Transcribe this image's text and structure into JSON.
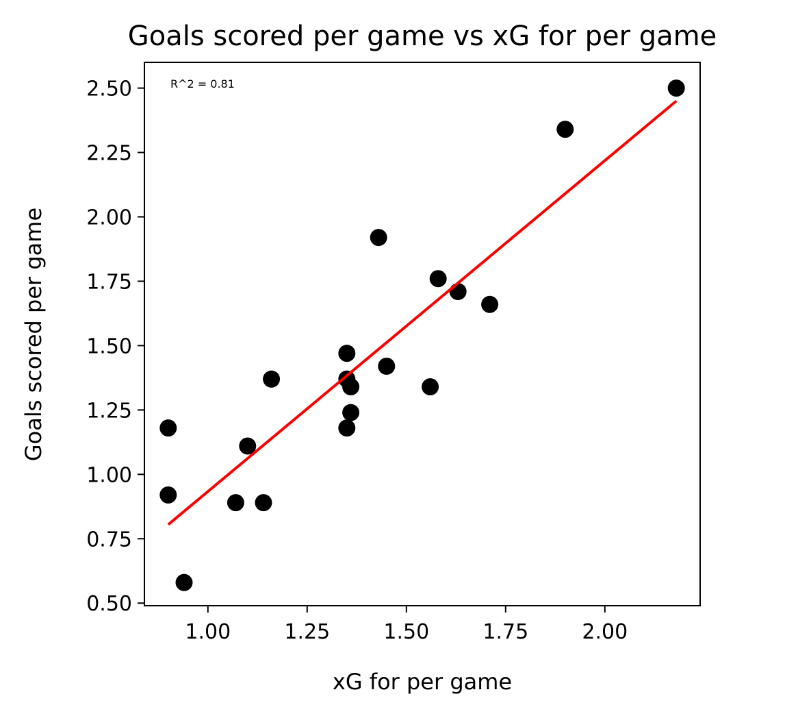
{
  "chart_data": {
    "type": "scatter",
    "title": "Goals scored per game vs xG for per game",
    "xlabel": "xG for per game",
    "ylabel": "Goals scored per game",
    "annotation": "R^2 = 0.81",
    "xlim": [
      0.84,
      2.24
    ],
    "ylim": [
      0.49,
      2.6
    ],
    "x_ticks": [
      1.0,
      1.25,
      1.5,
      1.75,
      2.0
    ],
    "x_tick_labels": [
      "1.00",
      "1.25",
      "1.50",
      "1.75",
      "2.00"
    ],
    "y_ticks": [
      0.5,
      0.75,
      1.0,
      1.25,
      1.5,
      1.75,
      2.0,
      2.25,
      2.5
    ],
    "y_tick_labels": [
      "0.50",
      "0.75",
      "1.00",
      "1.25",
      "1.50",
      "1.75",
      "2.00",
      "2.25",
      "2.50"
    ],
    "grid": false,
    "points": [
      {
        "x": 2.18,
        "y": 2.5
      },
      {
        "x": 1.9,
        "y": 2.34
      },
      {
        "x": 1.43,
        "y": 1.92
      },
      {
        "x": 1.58,
        "y": 1.76
      },
      {
        "x": 1.63,
        "y": 1.71
      },
      {
        "x": 1.71,
        "y": 1.66
      },
      {
        "x": 1.35,
        "y": 1.47
      },
      {
        "x": 1.45,
        "y": 1.42
      },
      {
        "x": 1.16,
        "y": 1.37
      },
      {
        "x": 1.35,
        "y": 1.37
      },
      {
        "x": 1.36,
        "y": 1.34
      },
      {
        "x": 1.56,
        "y": 1.34
      },
      {
        "x": 1.36,
        "y": 1.24
      },
      {
        "x": 0.9,
        "y": 1.18
      },
      {
        "x": 1.35,
        "y": 1.18
      },
      {
        "x": 1.1,
        "y": 1.11
      },
      {
        "x": 0.9,
        "y": 0.92
      },
      {
        "x": 1.07,
        "y": 0.89
      },
      {
        "x": 1.14,
        "y": 0.89
      },
      {
        "x": 0.94,
        "y": 0.58
      }
    ],
    "fit_line": {
      "x": [
        0.9,
        2.18
      ],
      "y": [
        0.805,
        2.45
      ]
    },
    "colors": {
      "points": "#000000",
      "fit": "#ff0000",
      "annotation": "#0000ff"
    }
  }
}
